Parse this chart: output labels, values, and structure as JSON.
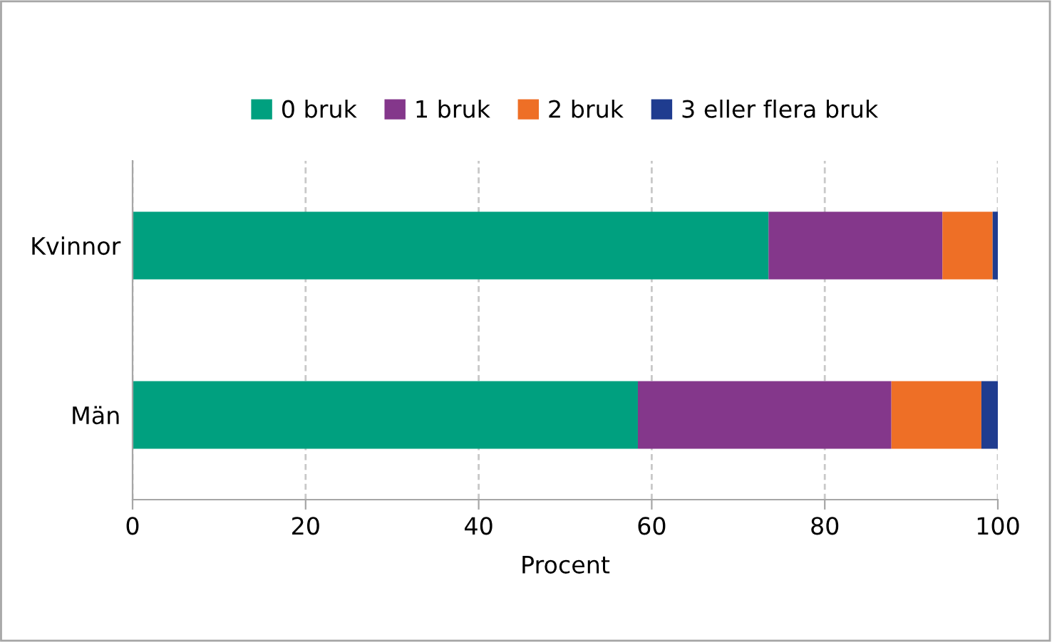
{
  "chart_data": {
    "type": "bar",
    "orientation": "horizontal",
    "stacked": true,
    "xlabel": "Procent",
    "categories": [
      "Kvinnor",
      "Män"
    ],
    "series": [
      {
        "name": "0 bruk",
        "color": "#00a07f",
        "values": [
          73.5,
          58.4
        ]
      },
      {
        "name": "1 bruk",
        "color": "#84378b",
        "values": [
          20.1,
          29.3
        ]
      },
      {
        "name": "2 bruk",
        "color": "#ee6f26",
        "values": [
          5.8,
          10.4
        ]
      },
      {
        "name": "3 eller flera bruk",
        "color": "#1f3c8f",
        "values": [
          0.6,
          1.9
        ]
      }
    ],
    "xlim": [
      0,
      100
    ],
    "xticks": [
      0,
      20,
      40,
      60,
      80,
      100
    ],
    "grid": "x",
    "legend": "top"
  }
}
